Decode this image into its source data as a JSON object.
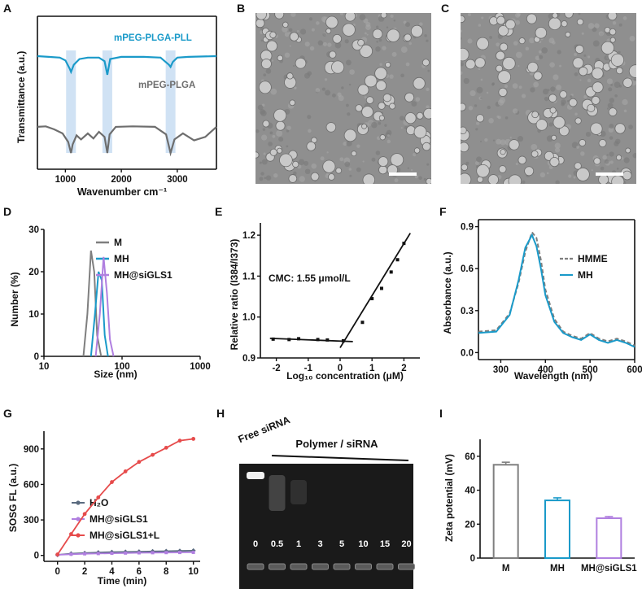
{
  "panels": {
    "A": "A",
    "B": "B",
    "C": "C",
    "D": "D",
    "E": "E",
    "F": "F",
    "G": "G",
    "H": "H",
    "I": "I"
  },
  "chart_data": [
    {
      "panel": "A",
      "type": "line",
      "title": "",
      "xlabel": "Wavenumber cm⁻¹",
      "ylabel": "Transmittance (a.u.)",
      "xlim": [
        500,
        3700
      ],
      "xticks": [
        1000,
        2000,
        3000
      ],
      "highlight_bands": [
        1100,
        1750,
        2880
      ],
      "series": [
        {
          "name": "mPEG-PLGA-PLL",
          "color": "#1a9ac9",
          "x": [
            500,
            700,
            900,
            1000,
            1080,
            1100,
            1150,
            1250,
            1400,
            1600,
            1700,
            1750,
            1800,
            2000,
            2400,
            2700,
            2850,
            2880,
            2920,
            3000,
            3200,
            3700
          ],
          "y": [
            0.92,
            0.91,
            0.9,
            0.86,
            0.74,
            0.7,
            0.8,
            0.88,
            0.9,
            0.9,
            0.85,
            0.66,
            0.88,
            0.91,
            0.91,
            0.9,
            0.8,
            0.77,
            0.84,
            0.9,
            0.91,
            0.92
          ]
        },
        {
          "name": "mPEG-PLGA",
          "color": "#6e6e6e",
          "x": [
            500,
            650,
            800,
            950,
            1050,
            1100,
            1130,
            1200,
            1280,
            1400,
            1500,
            1600,
            1700,
            1750,
            1790,
            1900,
            2200,
            2600,
            2800,
            2880,
            2950,
            3100,
            3300,
            3500,
            3700
          ],
          "y": [
            0.55,
            0.56,
            0.5,
            0.42,
            0.25,
            0.03,
            0.2,
            0.38,
            0.3,
            0.42,
            0.32,
            0.45,
            0.35,
            0.03,
            0.4,
            0.55,
            0.56,
            0.55,
            0.4,
            0.03,
            0.3,
            0.42,
            0.28,
            0.35,
            0.55
          ]
        }
      ]
    },
    {
      "panel": "D",
      "type": "line",
      "xlabel": "Size (nm)",
      "ylabel": "Number (%)",
      "xscale": "log",
      "xlim": [
        10,
        1000
      ],
      "ylim": [
        0,
        30
      ],
      "xticks": [
        10,
        100,
        1000
      ],
      "yticks": [
        0,
        10,
        20,
        30
      ],
      "series": [
        {
          "name": "M",
          "color": "#7f7f7f",
          "x": [
            32,
            36,
            40,
            44,
            48,
            54
          ],
          "y": [
            0,
            10,
            25,
            20,
            5,
            0
          ]
        },
        {
          "name": "MH",
          "color": "#1a9ac9",
          "x": [
            40,
            45,
            50,
            55,
            60,
            66
          ],
          "y": [
            0,
            10,
            20,
            18,
            5,
            0
          ]
        },
        {
          "name": "MH@siGLS1",
          "color": "#b07fe0",
          "x": [
            46,
            52,
            58,
            64,
            70,
            78
          ],
          "y": [
            0,
            10,
            23.5,
            15,
            4,
            0
          ]
        }
      ]
    },
    {
      "panel": "E",
      "type": "scatter",
      "xlabel": "Log₁₀ concentration (μM)",
      "ylabel": "Relative ratio (I384/I373)",
      "xlim": [
        -2.5,
        2.5
      ],
      "ylim": [
        0.9,
        1.23
      ],
      "xticks": [
        -2,
        -1,
        0,
        1,
        2
      ],
      "yticks": [
        0.9,
        1.0,
        1.1,
        1.2
      ],
      "annotation": "CMC: 1.55 μmol/L",
      "points": {
        "x": [
          -2.1,
          -1.6,
          -1.3,
          -0.7,
          -0.4,
          0.1,
          0.7,
          1.0,
          1.3,
          1.6,
          1.8,
          2.0
        ],
        "y": [
          0.946,
          0.945,
          0.947,
          0.945,
          0.944,
          0.942,
          0.987,
          1.045,
          1.07,
          1.11,
          1.14,
          1.18
        ]
      },
      "fit_lines": [
        {
          "x": [
            -2.2,
            0.4
          ],
          "y": [
            0.948,
            0.94
          ]
        },
        {
          "x": [
            0.0,
            2.2
          ],
          "y": [
            0.925,
            1.205
          ]
        }
      ]
    },
    {
      "panel": "F",
      "type": "line",
      "xlabel": "Wavelength (nm)",
      "ylabel": "Absorbance (a.u.)",
      "xlim": [
        250,
        600
      ],
      "ylim": [
        -0.05,
        0.95
      ],
      "xticks": [
        300,
        400,
        500,
        600
      ],
      "yticks": [
        0.0,
        0.3,
        0.6,
        0.9
      ],
      "series": [
        {
          "name": "HMME",
          "color": "#7f7f7f",
          "dashed": true,
          "x": [
            250,
            290,
            320,
            340,
            355,
            370,
            380,
            390,
            400,
            420,
            440,
            460,
            480,
            500,
            520,
            540,
            560,
            580,
            600
          ],
          "y": [
            0.15,
            0.16,
            0.28,
            0.5,
            0.72,
            0.86,
            0.82,
            0.66,
            0.45,
            0.24,
            0.15,
            0.12,
            0.1,
            0.14,
            0.1,
            0.08,
            0.1,
            0.08,
            0.05
          ]
        },
        {
          "name": "MH",
          "color": "#1a9ac9",
          "x": [
            250,
            290,
            320,
            340,
            355,
            370,
            380,
            390,
            400,
            420,
            440,
            460,
            480,
            500,
            520,
            540,
            560,
            580,
            600
          ],
          "y": [
            0.14,
            0.15,
            0.27,
            0.52,
            0.75,
            0.84,
            0.76,
            0.6,
            0.41,
            0.22,
            0.14,
            0.11,
            0.09,
            0.13,
            0.09,
            0.07,
            0.09,
            0.07,
            0.04
          ]
        }
      ]
    },
    {
      "panel": "G",
      "type": "line",
      "xlabel": "Time (min)",
      "ylabel": "SOSG FL (a.u.)",
      "xlim": [
        -1,
        10.5
      ],
      "ylim": [
        -50,
        1050
      ],
      "xticks": [
        0,
        2,
        4,
        6,
        8,
        10
      ],
      "yticks": [
        0,
        300,
        600,
        900
      ],
      "series": [
        {
          "name": "H₂O",
          "color": "#5a6b7f",
          "marker": "diamond",
          "x": [
            0,
            1,
            2,
            3,
            4,
            5,
            6,
            7,
            8,
            9,
            10
          ],
          "y": [
            5,
            15,
            20,
            25,
            28,
            30,
            32,
            34,
            36,
            38,
            40
          ]
        },
        {
          "name": "MH@siGLS1",
          "color": "#b07fe0",
          "marker": "square",
          "x": [
            0,
            1,
            2,
            3,
            4,
            5,
            6,
            7,
            8,
            9,
            10
          ],
          "y": [
            5,
            10,
            14,
            16,
            18,
            20,
            22,
            23,
            24,
            25,
            26
          ]
        },
        {
          "name": "MH@siGLS1+L",
          "color": "#e64b4b",
          "marker": "circle",
          "x": [
            0,
            1,
            2,
            3,
            4,
            5,
            6,
            7,
            8,
            9,
            10
          ],
          "y": [
            8,
            180,
            350,
            490,
            620,
            710,
            790,
            850,
            910,
            970,
            985
          ]
        }
      ]
    },
    {
      "panel": "H",
      "type": "table",
      "title": "Polymer / siRNA",
      "free_label": "Free siRNA",
      "lanes": [
        "0",
        "0.5",
        "1",
        "3",
        "5",
        "10",
        "15",
        "20"
      ]
    },
    {
      "panel": "I",
      "type": "bar",
      "ylabel": "Zeta potential (mV)",
      "ylim": [
        0,
        70
      ],
      "yticks": [
        0,
        20,
        40,
        60
      ],
      "categories": [
        "M",
        "MH",
        "MH@siGLS1"
      ],
      "values": [
        55,
        34,
        23.5
      ],
      "errors": [
        1.5,
        1.5,
        1.0
      ],
      "colors": [
        "#7f7f7f",
        "#1a9ac9",
        "#b07fe0"
      ]
    }
  ]
}
